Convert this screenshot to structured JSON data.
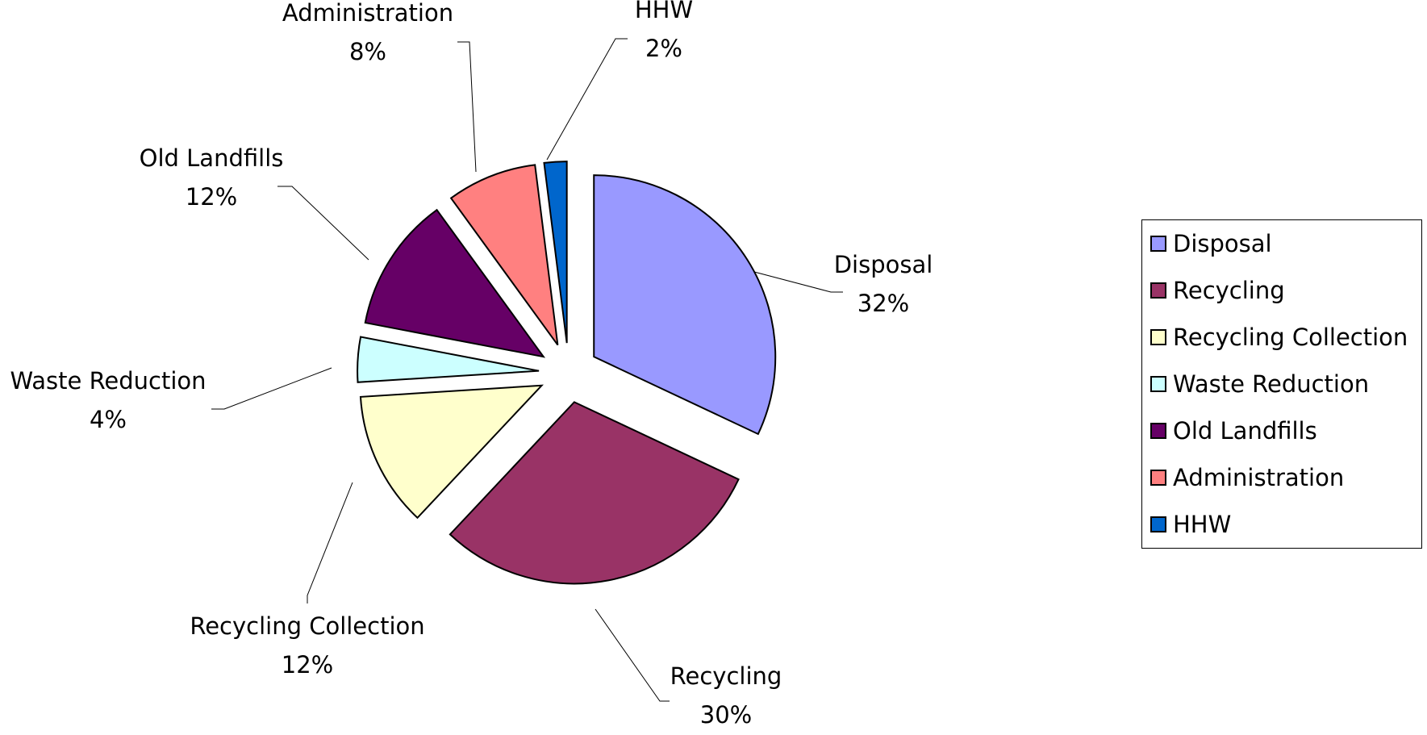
{
  "chart_data": {
    "type": "pie",
    "exploded": true,
    "legend_position": "right",
    "slices": [
      {
        "label": "Disposal",
        "value": 32,
        "value_label": "32%",
        "color": "#9999FF"
      },
      {
        "label": "Recycling",
        "value": 30,
        "value_label": "30%",
        "color": "#993366"
      },
      {
        "label": "Recycling Collection",
        "value": 12,
        "value_label": "12%",
        "color": "#FFFFCC"
      },
      {
        "label": "Waste Reduction",
        "value": 4,
        "value_label": "4%",
        "color": "#CCFFFF"
      },
      {
        "label": "Old Landfills",
        "value": 12,
        "value_label": "12%",
        "color": "#660066"
      },
      {
        "label": "Administration",
        "value": 8,
        "value_label": "8%",
        "color": "#FF8080"
      },
      {
        "label": "HHW",
        "value": 2,
        "value_label": "2%",
        "color": "#0066CC"
      }
    ]
  }
}
